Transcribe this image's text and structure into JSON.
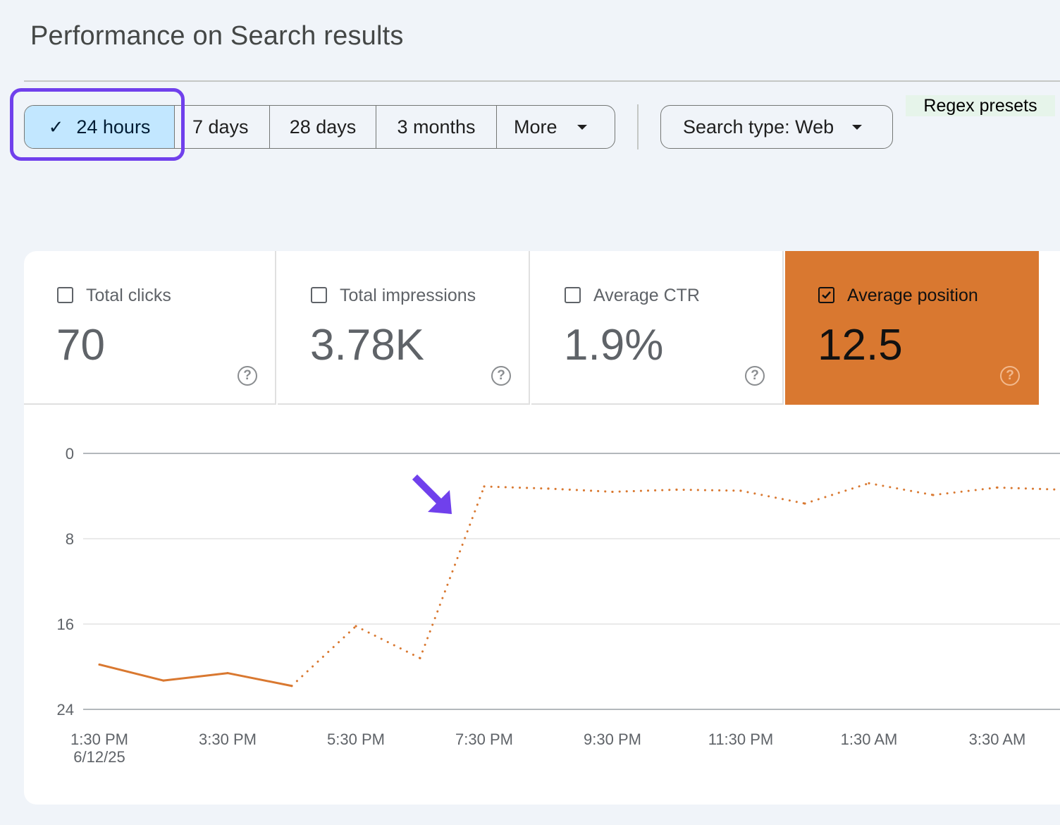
{
  "page": {
    "title": "Performance on Search results"
  },
  "date_filter": {
    "options": [
      "24 hours",
      "7 days",
      "28 days",
      "3 months"
    ],
    "more_label": "More",
    "selected": "24 hours",
    "highlight_color": "#7040ec"
  },
  "search_type": {
    "label": "Search type: Web"
  },
  "regex_presets": {
    "label": "Regex presets"
  },
  "metrics": [
    {
      "label": "Total clicks",
      "value": "70",
      "checked": false
    },
    {
      "label": "Total impressions",
      "value": "3.78K",
      "checked": false
    },
    {
      "label": "Average CTR",
      "value": "1.9%",
      "checked": false
    },
    {
      "label": "Average position",
      "value": "12.5",
      "checked": true,
      "color": "#d97830"
    }
  ],
  "icons": {
    "check": "check-icon",
    "dropdown": "arrow-drop-down-icon",
    "help": "help-circle-icon",
    "annotation": "arrow-annotation-icon"
  },
  "chart_data": {
    "type": "line",
    "series_name": "Average position",
    "series_color": "#d97830",
    "y_inverted": true,
    "ylim": [
      0,
      24
    ],
    "yticks": [
      "0",
      "8",
      "16",
      "24"
    ],
    "x_tick_labels": [
      "1:30 PM",
      "3:30 PM",
      "5:30 PM",
      "7:30 PM",
      "9:30 PM",
      "11:30 PM",
      "1:30 AM",
      "3:30 AM"
    ],
    "x_sub_label": "6/12/25",
    "grid": true,
    "points": [
      {
        "x": 0,
        "y": 19.8,
        "style": "solid"
      },
      {
        "x": 1,
        "y": 21.3,
        "style": "solid"
      },
      {
        "x": 2,
        "y": 20.6,
        "style": "solid"
      },
      {
        "x": 3,
        "y": 21.8,
        "style": "solid"
      },
      {
        "x": 4,
        "y": 16.2,
        "style": "dotted"
      },
      {
        "x": 5,
        "y": 19.2,
        "style": "dotted"
      },
      {
        "x": 6,
        "y": 3.1,
        "style": "dotted"
      },
      {
        "x": 7,
        "y": 3.3,
        "style": "dotted"
      },
      {
        "x": 8,
        "y": 3.6,
        "style": "dotted"
      },
      {
        "x": 9,
        "y": 3.4,
        "style": "dotted"
      },
      {
        "x": 10,
        "y": 3.5,
        "style": "dotted"
      },
      {
        "x": 11,
        "y": 4.7,
        "style": "dotted"
      },
      {
        "x": 12,
        "y": 2.8,
        "style": "dotted"
      },
      {
        "x": 13,
        "y": 3.9,
        "style": "dotted"
      },
      {
        "x": 14,
        "y": 3.2,
        "style": "dotted"
      },
      {
        "x": 15,
        "y": 3.4,
        "style": "dotted"
      }
    ]
  }
}
